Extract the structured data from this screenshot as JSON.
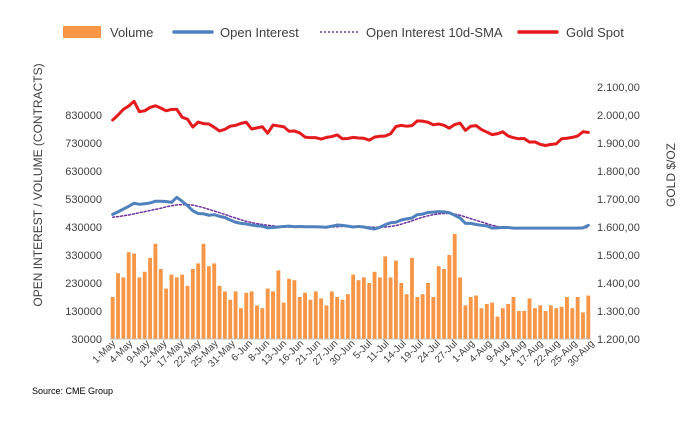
{
  "chart_data": {
    "type": "bar+line",
    "legend": [
      {
        "label": "Volume",
        "kind": "bar",
        "color": "#F79646"
      },
      {
        "label": "Open Interest",
        "kind": "line",
        "color": "#4F81BD"
      },
      {
        "label": "Open Interest 10d-SMA",
        "kind": "dotted",
        "color": "#7030A0"
      },
      {
        "label": "Gold Spot",
        "kind": "line",
        "color": "#E41A1C"
      }
    ],
    "ylabel_left": "OPEN INTEREST / VOLUME (CONTRACTS)",
    "ylabel_right": "GOLD $/OZ",
    "ylim_left": [
      30000,
      930000
    ],
    "ylim_right": [
      1200,
      2100
    ],
    "yticks_left": [
      "30000",
      "130000",
      "230000",
      "330000",
      "430000",
      "530000",
      "630000",
      "730000",
      "830000"
    ],
    "yticks_right": [
      "1.200,00",
      "1.300,00",
      "1.400,00",
      "1.500,00",
      "1.600,00",
      "1.700,00",
      "1.800,00",
      "1.900,00",
      "2.000,00",
      "2.100,00"
    ],
    "xtick_labels": [
      "1-May",
      "4-May",
      "9-May",
      "12-May",
      "17-May",
      "22-May",
      "25-May",
      "31-May",
      "6-Jun",
      "8-Jun",
      "13-Jun",
      "16-Jun",
      "21-Jun",
      "27-Jun",
      "30-Jun",
      "5-Jul",
      "11-Jul",
      "14-Jul",
      "19-Jul",
      "24-Jul",
      "27-Jul",
      "1-Aug",
      "4-Aug",
      "9-Aug",
      "14-Aug",
      "17-Aug",
      "22-Aug",
      "25-Aug",
      "30-Aug"
    ],
    "series": [
      {
        "name": "Volume",
        "values": [
          180000,
          265000,
          250000,
          340000,
          335000,
          250000,
          270000,
          320000,
          370000,
          280000,
          210000,
          260000,
          250000,
          260000,
          220000,
          280000,
          300000,
          370000,
          290000,
          300000,
          220000,
          200000,
          170000,
          200000,
          140000,
          195000,
          200000,
          150000,
          140000,
          210000,
          200000,
          275000,
          160000,
          245000,
          240000,
          180000,
          195000,
          170000,
          200000,
          175000,
          150000,
          200000,
          180000,
          170000,
          190000,
          260000,
          240000,
          250000,
          230000,
          270000,
          250000,
          325000,
          250000,
          310000,
          230000,
          190000,
          320000,
          180000,
          190000,
          230000,
          180000,
          290000,
          280000,
          330000,
          405000,
          250000,
          150000,
          180000,
          185000,
          140000,
          155000,
          160000,
          110000,
          140000,
          155000,
          180000,
          130000,
          130000,
          175000,
          140000,
          150000,
          130000,
          150000,
          140000,
          145000,
          180000,
          140000,
          180000,
          125000,
          185000
        ]
      },
      {
        "name": "Open Interest",
        "values": [
          475000,
          484000,
          494000,
          504000,
          515000,
          511000,
          513000,
          516000,
          522000,
          522000,
          521000,
          518000,
          536000,
          522000,
          506000,
          488000,
          478000,
          477000,
          472000,
          474000,
          468000,
          464000,
          455000,
          447000,
          443000,
          441000,
          437000,
          434000,
          433000,
          427000,
          428000,
          430000,
          432000,
          433000,
          431000,
          432000,
          431000,
          431000,
          431000,
          430000,
          429000,
          433000,
          437000,
          436000,
          433000,
          430000,
          432000,
          430000,
          426000,
          423000,
          429000,
          438000,
          445000,
          447000,
          455000,
          459000,
          462000,
          474000,
          476000,
          482000,
          483000,
          485000,
          484000,
          481000,
          472000,
          462000,
          443000,
          443000,
          439000,
          436000,
          434000,
          426000,
          427000,
          428000,
          428000,
          426000,
          426000,
          426000,
          426000,
          426000,
          426000,
          426000,
          426000,
          426000,
          426000,
          426000,
          426000,
          426000,
          427000,
          436000
        ]
      },
      {
        "name": "Open Interest 10d-SMA",
        "values": [
          465000,
          467000,
          470000,
          473000,
          477000,
          481000,
          485000,
          489000,
          493000,
          497000,
          502000,
          506000,
          509000,
          510000,
          510000,
          508000,
          504000,
          499000,
          493000,
          487000,
          481000,
          475000,
          468000,
          462000,
          456000,
          450000,
          446000,
          442000,
          439000,
          436000,
          434000,
          432000,
          431000,
          430000,
          430000,
          430000,
          430000,
          430000,
          430000,
          430000,
          430000,
          430000,
          431000,
          432000,
          432000,
          432000,
          432000,
          431000,
          430000,
          429000,
          429000,
          430000,
          432000,
          435000,
          440000,
          446000,
          452000,
          459000,
          465000,
          470000,
          474000,
          477000,
          478000,
          478000,
          476000,
          472000,
          466000,
          460000,
          454000,
          448000,
          442000,
          436000,
          432000,
          429000,
          427000,
          426000,
          426000,
          426000,
          426000,
          426000,
          426000,
          426000,
          426000,
          426000,
          426000,
          426000,
          426000,
          426000,
          427000,
          428000
        ]
      },
      {
        "name": "Gold Spot",
        "values": [
          1982,
          2000,
          2020,
          2032,
          2049,
          2012,
          2015,
          2027,
          2033,
          2025,
          2015,
          2020,
          2020,
          1992,
          1985,
          1957,
          1975,
          1969,
          1968,
          1956,
          1943,
          1949,
          1960,
          1963,
          1970,
          1974,
          1950,
          1954,
          1958,
          1935,
          1964,
          1961,
          1958,
          1942,
          1943,
          1936,
          1921,
          1919,
          1919,
          1914,
          1920,
          1923,
          1929,
          1915,
          1916,
          1920,
          1918,
          1917,
          1910,
          1921,
          1924,
          1925,
          1933,
          1959,
          1963,
          1960,
          1962,
          1979,
          1978,
          1974,
          1965,
          1968,
          1963,
          1953,
          1966,
          1971,
          1945,
          1960,
          1962,
          1948,
          1939,
          1930,
          1933,
          1940,
          1925,
          1919,
          1915,
          1916,
          1903,
          1904,
          1895,
          1891,
          1895,
          1897,
          1915,
          1917,
          1920,
          1925,
          1940,
          1938
        ]
      }
    ]
  },
  "source": "Source: CME Group"
}
